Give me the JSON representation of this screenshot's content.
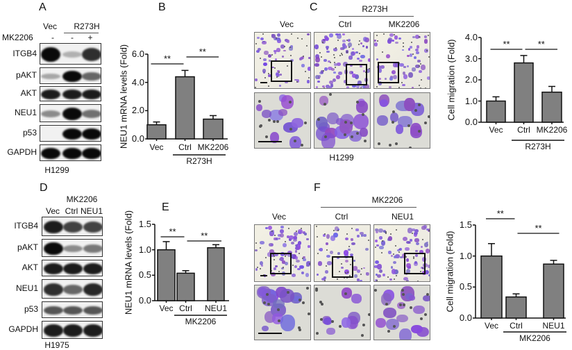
{
  "panels": {
    "A": {
      "label": "A",
      "header_vec": "Vec",
      "header_group": "R273H",
      "treatment_label": "MK2206",
      "treatment_marks": [
        "-",
        "-",
        "+"
      ],
      "rows": [
        {
          "name": "ITGB4",
          "band_intensity": [
            1.0,
            0.1,
            0.8
          ]
        },
        {
          "name": "pAKT",
          "band_intensity": [
            0.15,
            1.0,
            0.5
          ]
        },
        {
          "name": "AKT",
          "band_intensity": [
            0.9,
            0.9,
            0.9
          ]
        },
        {
          "name": "NEU1",
          "band_intensity": [
            0.3,
            1.0,
            0.45
          ]
        },
        {
          "name": "p53",
          "band_intensity": [
            0.0,
            1.0,
            1.0
          ]
        },
        {
          "name": "GAPDH",
          "band_intensity": [
            1.0,
            1.0,
            1.0
          ]
        }
      ],
      "cell_line": "H1299"
    },
    "C": {
      "label": "C",
      "group": "R273H",
      "columns": [
        "Vec",
        "Ctrl",
        "MK2206"
      ],
      "density": [
        0.45,
        0.9,
        0.5
      ],
      "cell_line": "H1299"
    },
    "D": {
      "label": "D",
      "treatment": "MK2206",
      "columns": [
        "Vec",
        "Ctrl",
        "NEU1"
      ],
      "rows": [
        {
          "name": "ITGB4",
          "band_intensity": [
            0.9,
            0.7,
            0.7
          ]
        },
        {
          "name": "pAKT",
          "band_intensity": [
            1.0,
            0.3,
            0.4
          ]
        },
        {
          "name": "AKT",
          "band_intensity": [
            0.9,
            0.9,
            0.9
          ]
        },
        {
          "name": "NEU1",
          "band_intensity": [
            0.8,
            0.5,
            0.85
          ]
        },
        {
          "name": "p53",
          "band_intensity": [
            0.6,
            0.6,
            0.6
          ]
        },
        {
          "name": "GAPDH",
          "band_intensity": [
            0.9,
            0.9,
            0.9
          ]
        }
      ],
      "cell_line": "H1975"
    },
    "F": {
      "label": "F",
      "group": "MK2206",
      "columns": [
        "Vec",
        "Ctrl",
        "NEU1"
      ],
      "density": [
        0.8,
        0.35,
        0.8
      ]
    }
  },
  "chart_data": [
    {
      "panel": "B",
      "type": "bar",
      "categories": [
        "Vec",
        "Ctrl",
        "MK2206"
      ],
      "values": [
        1.0,
        4.4,
        1.4
      ],
      "errors": [
        0.2,
        0.45,
        0.25
      ],
      "ylabel": "NEU1 mRNA levels (Fold)",
      "ylim": [
        0,
        6
      ],
      "yticks": [
        "0.0",
        "2.0",
        "4.0",
        "6.0"
      ],
      "group_label": "R273H",
      "group_span": [
        "Ctrl",
        "MK2206"
      ],
      "significance": [
        {
          "from": "Vec",
          "to": "Ctrl",
          "label": "**"
        },
        {
          "from": "Ctrl",
          "to": "MK2206",
          "label": "**"
        }
      ],
      "bar_color": "#808080"
    },
    {
      "panel": "C",
      "type": "bar",
      "categories": [
        "Vec",
        "Ctrl",
        "MK2206"
      ],
      "values": [
        1.0,
        2.8,
        1.42
      ],
      "errors": [
        0.2,
        0.35,
        0.27
      ],
      "ylabel": "Cell migration (Fold)",
      "ylim": [
        0,
        4
      ],
      "yticks": [
        "0.0",
        "1.0",
        "2.0",
        "3.0",
        "4.0"
      ],
      "group_label": "R273H",
      "group_span": [
        "Ctrl",
        "MK2206"
      ],
      "significance": [
        {
          "from": "Vec",
          "to": "Ctrl",
          "label": "**"
        },
        {
          "from": "Ctrl",
          "to": "MK2206",
          "label": "**"
        }
      ],
      "bar_color": "#808080"
    },
    {
      "panel": "E",
      "label": "E",
      "type": "bar",
      "categories": [
        "Vec",
        "Ctrl",
        "NEU1"
      ],
      "values": [
        1.0,
        0.54,
        1.04
      ],
      "errors": [
        0.16,
        0.05,
        0.06
      ],
      "ylabel": "NEU1 mRNA levels (Fold)",
      "ylim": [
        0,
        1.5
      ],
      "yticks": [
        "0.0",
        "0.5",
        "1.0",
        "1.5"
      ],
      "group_label": "MK2206",
      "group_span": [
        "Ctrl",
        "NEU1"
      ],
      "significance": [
        {
          "from": "Vec",
          "to": "Ctrl",
          "label": "**"
        },
        {
          "from": "Ctrl",
          "to": "NEU1",
          "label": "**"
        }
      ],
      "bar_color": "#808080"
    },
    {
      "panel": "F",
      "type": "bar",
      "categories": [
        "Vec",
        "Ctrl",
        "NEU1"
      ],
      "values": [
        1.0,
        0.34,
        0.87
      ],
      "errors": [
        0.2,
        0.05,
        0.06
      ],
      "ylabel": "Cell migration (Fold)",
      "ylim": [
        0,
        1.5
      ],
      "yticks": [
        "0.0",
        "0.5",
        "1.0",
        "1.5"
      ],
      "group_label": "MK2206",
      "group_span": [
        "Ctrl",
        "NEU1"
      ],
      "significance": [
        {
          "from": "Vec",
          "to": "Ctrl",
          "label": "**"
        },
        {
          "from": "Ctrl",
          "to": "NEU1",
          "label": "**"
        }
      ],
      "bar_color": "#808080"
    }
  ],
  "panel_B_label": "B"
}
